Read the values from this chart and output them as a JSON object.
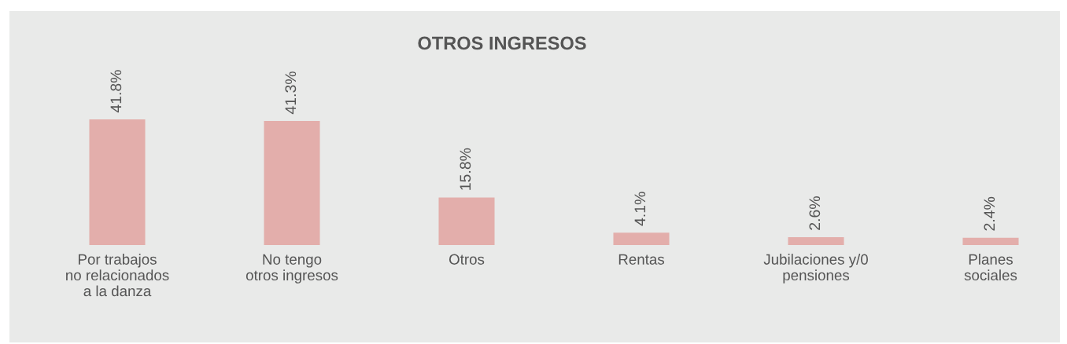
{
  "chart_data": {
    "type": "bar",
    "title": "OTROS INGRESOS",
    "categories": [
      "Por trabajos\nno relacionados\na la danza",
      "No tengo\notros ingresos",
      "Otros",
      "Rentas",
      "Jubilaciones y/0\npensiones",
      "Planes\nsociales"
    ],
    "values": [
      41.8,
      41.3,
      15.8,
      4.1,
      2.6,
      2.4
    ],
    "value_labels": [
      "41.8%",
      "41.3%",
      "15.8%",
      "4.1%",
      "2.6%",
      "2.4%"
    ],
    "color": "#e3aeab",
    "grid": false,
    "legend": false,
    "tick_labels": "x"
  }
}
